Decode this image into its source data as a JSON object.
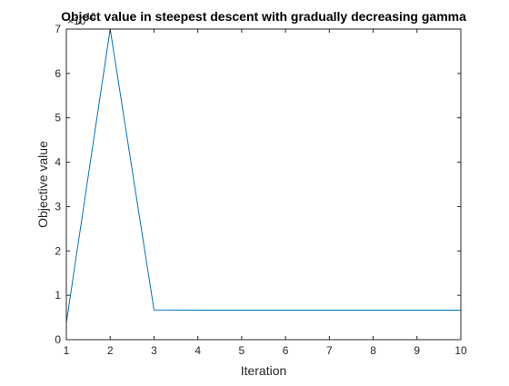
{
  "chart_data": {
    "type": "line",
    "title": "Object value in steepest descent with gradually decreasing gamma",
    "xlabel": "Iteration",
    "ylabel": "Objective value",
    "y_exponent_label": "×10",
    "y_exponent_power": "16",
    "xlim": [
      1,
      10
    ],
    "ylim": [
      0,
      7
    ],
    "x_ticks": [
      1,
      2,
      3,
      4,
      5,
      6,
      7,
      8,
      9,
      10
    ],
    "y_ticks": [
      0,
      1,
      2,
      3,
      4,
      5,
      6,
      7
    ],
    "grid": false,
    "box": true,
    "series": [
      {
        "x": [
          1,
          2,
          3,
          4,
          5,
          6,
          7,
          8,
          9,
          10
        ],
        "values": [
          0.38,
          7.0,
          0.67,
          0.665,
          0.665,
          0.665,
          0.665,
          0.665,
          0.665,
          0.665
        ],
        "color": "#0072BD"
      }
    ],
    "colors": {
      "axis": "#262626",
      "background": "#ffffff"
    }
  }
}
